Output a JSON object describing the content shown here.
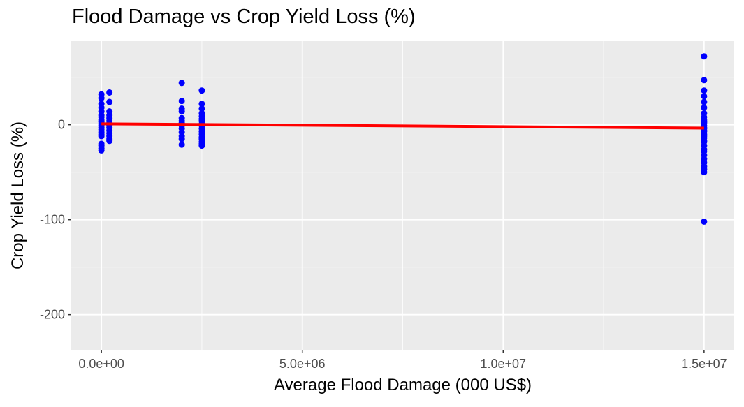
{
  "chart_data": {
    "type": "scatter",
    "title": "Flood Damage vs Crop Yield Loss (%)",
    "xlabel": "Average Flood Damage (000 US$)",
    "ylabel": "Crop Yield Loss (%)",
    "xlim": [
      -750000,
      15750000
    ],
    "ylim": [
      -237,
      88
    ],
    "x_ticks": [
      0,
      5000000,
      10000000,
      15000000
    ],
    "x_tick_labels": [
      "0.0e+00",
      "5.0e+06",
      "1.0e+07",
      "1.5e+07"
    ],
    "y_ticks": [
      0,
      -100,
      -200
    ],
    "y_tick_labels": [
      "0",
      "-100",
      "-200"
    ],
    "grid": true,
    "background": "#ebebeb",
    "grid_color": "#ffffff",
    "point_color": "#0000ff",
    "line_color": "#ff0000",
    "series": [
      {
        "x": [
          0,
          0,
          0,
          0,
          0,
          0,
          0,
          0,
          0,
          0,
          0,
          0,
          0,
          0,
          0,
          0,
          0,
          0,
          0,
          0,
          200000,
          200000,
          200000,
          200000,
          200000,
          200000,
          200000,
          200000,
          200000,
          200000,
          200000,
          200000,
          200000,
          200000,
          2000000,
          2000000,
          2000000,
          2000000,
          2000000,
          2000000,
          2000000,
          2000000,
          2000000,
          2000000,
          2000000,
          2000000,
          2000000,
          2500000,
          2500000,
          2500000,
          2500000,
          2500000,
          2500000,
          2500000,
          2500000,
          2500000,
          2500000,
          2500000,
          2500000,
          2500000,
          2500000,
          2500000,
          2500000,
          2500000,
          2500000,
          15000000,
          15000000,
          15000000,
          15000000,
          15000000,
          15000000,
          15000000,
          15000000,
          15000000,
          15000000,
          15000000,
          15000000,
          15000000,
          15000000,
          15000000,
          15000000,
          15000000,
          15000000,
          15000000,
          15000000,
          15000000,
          15000000,
          15000000,
          15000000,
          15000000,
          15000000,
          15000000,
          15000000,
          15000000,
          15000000,
          15000000
        ],
        "y": [
          32,
          28,
          22,
          18,
          14,
          10,
          8,
          5,
          3,
          1,
          -1,
          -3,
          -5,
          -8,
          -10,
          -12,
          -20,
          -22,
          -25,
          -27,
          34,
          24,
          14,
          10,
          7,
          4,
          2,
          -1,
          -3,
          -6,
          -9,
          -12,
          -15,
          -17,
          44,
          25,
          17,
          14,
          7,
          4,
          2,
          -1,
          -4,
          -8,
          -12,
          -15,
          -21,
          36,
          22,
          17,
          12,
          9,
          6,
          4,
          1,
          -1,
          -4,
          -7,
          -10,
          -13,
          -15,
          -18,
          -20,
          -22,
          -14,
          72,
          47,
          36,
          30,
          24,
          18,
          12,
          8,
          5,
          2,
          -1,
          -4,
          -7,
          -10,
          -14,
          -18,
          -22,
          -26,
          -28,
          -32,
          -36,
          -40,
          -44,
          -47,
          -50,
          -17,
          -12,
          3,
          -3,
          -6,
          -102
        ]
      }
    ],
    "fit_line": {
      "x": [
        0,
        15000000
      ],
      "y": [
        1,
        -3.5
      ]
    }
  }
}
